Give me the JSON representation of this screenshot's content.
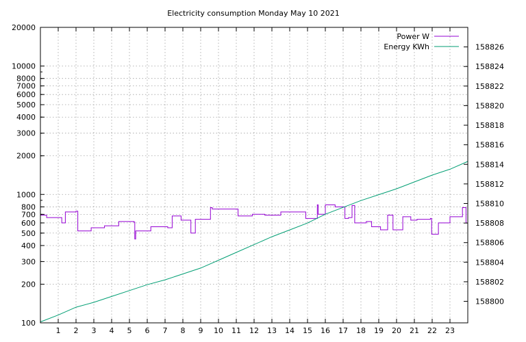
{
  "chart_data": {
    "type": "line",
    "title": "Electricity consumption Monday May 10 2021",
    "x_ticks": [
      1,
      2,
      3,
      4,
      5,
      6,
      7,
      8,
      9,
      10,
      11,
      12,
      13,
      14,
      15,
      16,
      17,
      18,
      19,
      20,
      21,
      22,
      23
    ],
    "xlim": [
      0,
      24
    ],
    "y_left": {
      "scale": "log",
      "lim": [
        100,
        20000
      ],
      "ticks": [
        100,
        200,
        300,
        400,
        500,
        600,
        700,
        800,
        1000,
        2000,
        3000,
        4000,
        5000,
        6000,
        7000,
        8000,
        10000,
        20000
      ],
      "tick_labels": [
        "100",
        "200",
        "300",
        "400",
        "500",
        "600",
        "700",
        "800",
        "1000",
        "2000",
        "3000",
        "4000",
        "5000",
        "6000",
        "7000",
        "8000",
        "10000",
        "20000"
      ]
    },
    "y_right": {
      "scale": "linear",
      "lim": [
        158797.8,
        158828
      ],
      "ticks": [
        158800,
        158802,
        158804,
        158806,
        158808,
        158810,
        158812,
        158814,
        158816,
        158818,
        158820,
        158822,
        158824,
        158826
      ],
      "tick_labels": [
        "158800",
        "158802",
        "158804",
        "158806",
        "158808",
        "158810",
        "158812",
        "158814",
        "158816",
        "158818",
        "158820",
        "158822",
        "158824",
        "158826"
      ]
    },
    "grid": true,
    "legend_position": "top-right",
    "series": [
      {
        "name": "Power W",
        "axis": "left",
        "color": "#9400d3",
        "step": true,
        "x": [
          0,
          0.35,
          1.2,
          1.4,
          2.0,
          2.1,
          2.85,
          3.6,
          4.4,
          5.25,
          5.3,
          5.35,
          6.2,
          7.15,
          7.4,
          7.9,
          8.45,
          8.7,
          9.55,
          9.65,
          11.1,
          11.9,
          12.6,
          13.5,
          14.9,
          15.55,
          15.6,
          16.0,
          16.55,
          17.1,
          17.3,
          17.5,
          17.65,
          18.3,
          18.6,
          19.1,
          19.5,
          19.8,
          20.35,
          20.8,
          21.15,
          21.9,
          21.97,
          22.35,
          23.0,
          23.7,
          23.9,
          24.0
        ],
        "y": [
          690,
          660,
          600,
          730,
          740,
          520,
          550,
          570,
          615,
          610,
          450,
          520,
          560,
          550,
          680,
          630,
          500,
          640,
          790,
          770,
          680,
          700,
          690,
          730,
          650,
          830,
          700,
          830,
          800,
          650,
          660,
          820,
          600,
          615,
          560,
          530,
          690,
          530,
          670,
          630,
          640,
          650,
          490,
          600,
          670,
          790,
          600,
          600
        ]
      },
      {
        "name": "Energy KWh",
        "axis": "right",
        "color": "#009e73",
        "step": false,
        "x": [
          0,
          1,
          2,
          3,
          4,
          5,
          6,
          7,
          8,
          9,
          10,
          11,
          12,
          13,
          14,
          15,
          16,
          17,
          18,
          19,
          20,
          21,
          22,
          23,
          24
        ],
        "y": [
          158797.9,
          158798.6,
          158799.4,
          158799.9,
          158800.5,
          158801.1,
          158801.7,
          158802.2,
          158802.8,
          158803.4,
          158804.2,
          158805.0,
          158805.8,
          158806.6,
          158807.3,
          158808.0,
          158808.9,
          158809.6,
          158810.3,
          158810.9,
          158811.5,
          158812.2,
          158812.9,
          158813.5,
          158814.3
        ]
      }
    ]
  }
}
